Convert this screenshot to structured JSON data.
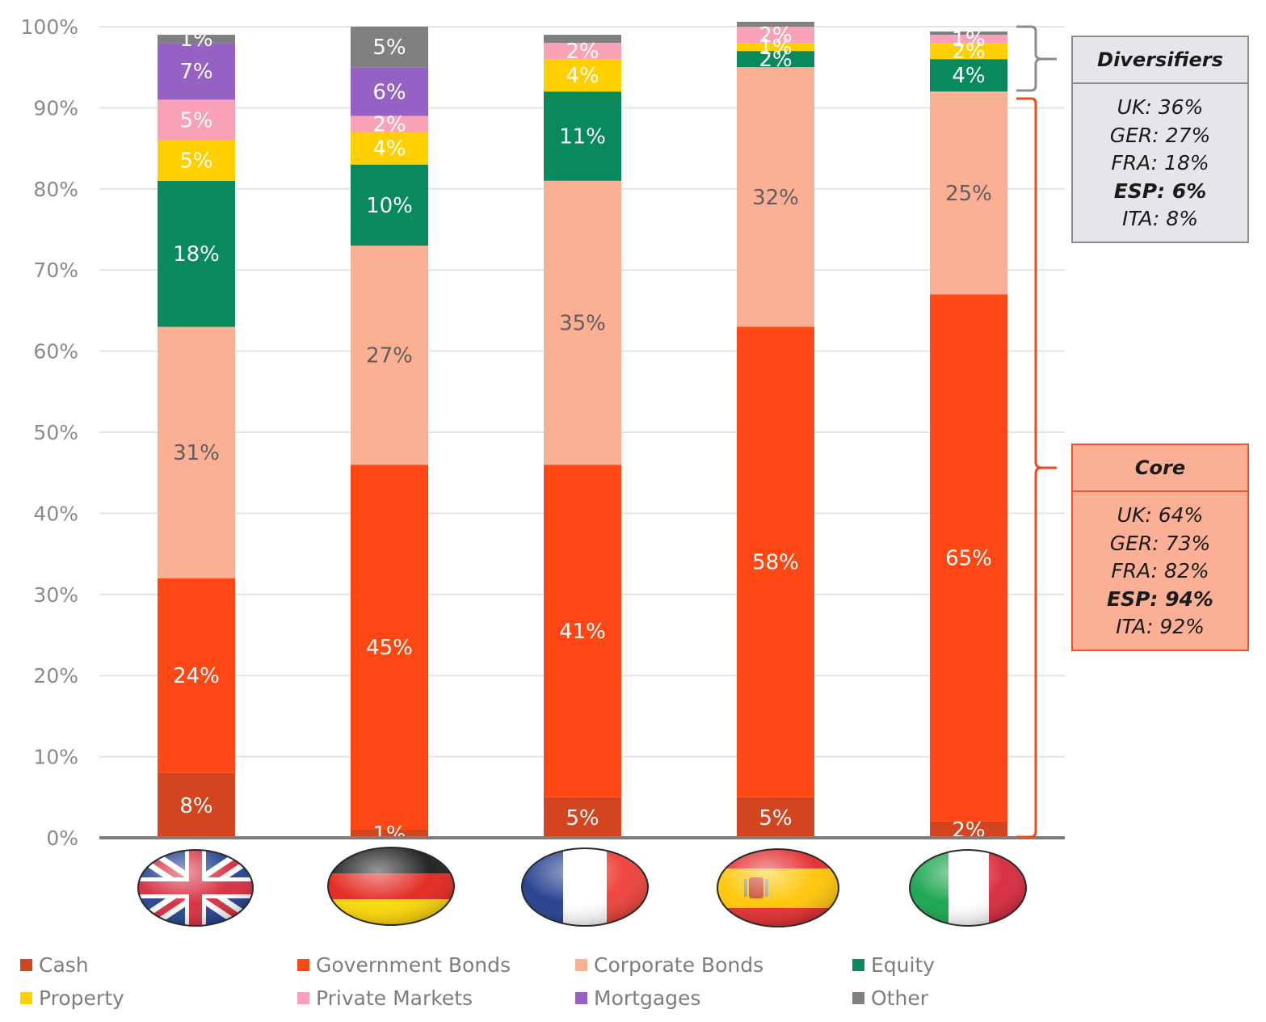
{
  "chart_data": {
    "type": "bar",
    "stacked": true,
    "categories": [
      "UK",
      "Germany",
      "France",
      "Spain",
      "Italy"
    ],
    "category_icons": [
      "uk-flag-icon",
      "germany-flag-icon",
      "france-flag-icon",
      "spain-flag-icon",
      "italy-flag-icon"
    ],
    "ylim": [
      0,
      100
    ],
    "yticks": [
      0,
      10,
      20,
      30,
      40,
      50,
      60,
      70,
      80,
      90,
      100
    ],
    "ytick_labels": [
      "0%",
      "10%",
      "20%",
      "30%",
      "40%",
      "50%",
      "60%",
      "70%",
      "80%",
      "90%",
      "100%"
    ],
    "grid": true,
    "legend_position": "bottom",
    "series": [
      {
        "name": "Cash",
        "color": "#d3451f",
        "label_color": "#ffffff",
        "values": [
          8,
          1,
          5,
          5,
          2
        ],
        "labels": [
          "8%",
          "1%",
          "5%",
          "5%",
          "2%"
        ]
      },
      {
        "name": "Government Bonds",
        "color": "#ff4715",
        "label_color": "#ffffff",
        "values": [
          24,
          45,
          41,
          58,
          65
        ],
        "labels": [
          "24%",
          "45%",
          "41%",
          "58%",
          "65%"
        ]
      },
      {
        "name": "Corporate Bonds",
        "color": "#fcb093",
        "label_color": "#5e5e5e",
        "values": [
          31,
          27,
          35,
          32,
          25
        ],
        "labels": [
          "31%",
          "27%",
          "35%",
          "32%",
          "25%"
        ]
      },
      {
        "name": "Equity",
        "color": "#088a5d",
        "label_color": "#ffffff",
        "values": [
          18,
          10,
          11,
          2,
          4
        ],
        "labels": [
          "18%",
          "10%",
          "11%",
          "2%",
          "4%"
        ]
      },
      {
        "name": "Property",
        "color": "#ffcf00",
        "label_color": "#ffffff",
        "values": [
          5,
          4,
          4,
          1,
          2
        ],
        "labels": [
          "5%",
          "4%",
          "4%",
          "1%",
          "2%"
        ]
      },
      {
        "name": "Private Markets",
        "color": "#fba1b7",
        "label_color": "#ffffff",
        "values": [
          5,
          2,
          2,
          2,
          1
        ],
        "labels": [
          "5%",
          "2%",
          "2%",
          "2%",
          "1%"
        ]
      },
      {
        "name": "Mortgages",
        "color": "#9561c4",
        "label_color": "#ffffff",
        "values": [
          7,
          6,
          0,
          0,
          0
        ],
        "labels": [
          "7%",
          "6%",
          "",
          "",
          ""
        ]
      },
      {
        "name": "Other",
        "color": "#808080",
        "label_color": "#ffffff",
        "values": [
          1,
          5,
          1,
          0.6,
          0.4
        ],
        "labels": [
          "1%",
          "5%",
          "",
          "",
          ""
        ]
      }
    ]
  },
  "annotations": {
    "diversifiers": {
      "title": "Diversifiers",
      "lines": [
        "UK: 36%",
        "GER: 27%",
        "FRA: 18%",
        "ESP: 6%",
        "ITA: 8%"
      ],
      "bold_line": "ESP: 6%"
    },
    "core": {
      "title": "Core",
      "lines": [
        "UK: 64%",
        "GER: 73%",
        "FRA: 82%",
        "ESP: 94%",
        "ITA: 92%"
      ],
      "bold_line": "ESP: 94%"
    }
  },
  "legend": {
    "items": [
      "Cash",
      "Government Bonds",
      "Corporate Bonds",
      "Equity",
      "Property",
      "Private Markets",
      "Mortgages",
      "Other"
    ],
    "colors": [
      "#d3451f",
      "#ff4715",
      "#fcb093",
      "#088a5d",
      "#ffcf00",
      "#fba1b7",
      "#9561c4",
      "#808080"
    ]
  }
}
